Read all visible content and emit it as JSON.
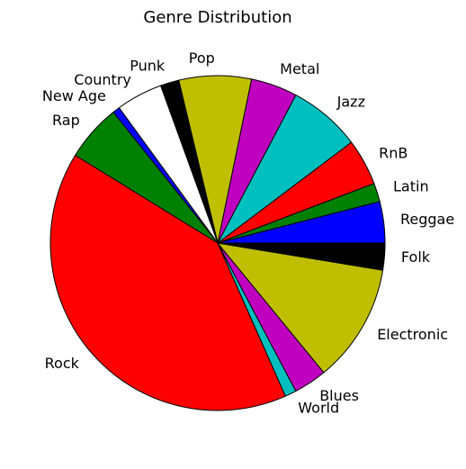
{
  "chart_data": {
    "type": "pie",
    "title": "Genre Distribution",
    "start_angle_deg": 0,
    "direction": "counterclockwise",
    "slices": [
      {
        "label": "Reggae",
        "value": 4.0,
        "color": "#0000ff"
      },
      {
        "label": "Latin",
        "value": 1.8,
        "color": "#008000"
      },
      {
        "label": "RnB",
        "value": 4.5,
        "color": "#ff0000"
      },
      {
        "label": "Jazz",
        "value": 7.0,
        "color": "#00bfbf"
      },
      {
        "label": "Metal",
        "value": 4.5,
        "color": "#bf00bf"
      },
      {
        "label": "Pop",
        "value": 7.0,
        "color": "#bfbf00"
      },
      {
        "label": "Punk",
        "value": 1.8,
        "color": "#000000"
      },
      {
        "label": "Country",
        "value": 4.5,
        "color": "#ffffff"
      },
      {
        "label": "New Age",
        "value": 0.7,
        "color": "#0000ff"
      },
      {
        "label": "Rap",
        "value": 5.5,
        "color": "#008000"
      },
      {
        "label": "Rock",
        "value": 40.5,
        "color": "#ff0000"
      },
      {
        "label": "World",
        "value": 1.1,
        "color": "#00bfbf"
      },
      {
        "label": "Blues",
        "value": 3.2,
        "color": "#bf00bf"
      },
      {
        "label": "Electronic",
        "value": 11.5,
        "color": "#bfbf00"
      },
      {
        "label": "Folk",
        "value": 2.6,
        "color": "#000000"
      }
    ]
  }
}
